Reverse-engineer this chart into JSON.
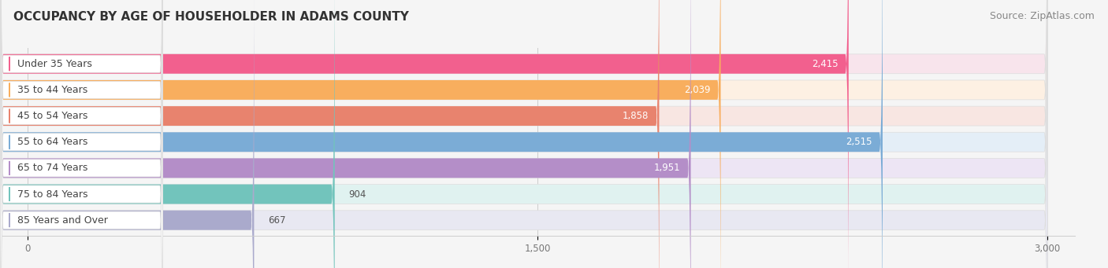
{
  "title": "OCCUPANCY BY AGE OF HOUSEHOLDER IN ADAMS COUNTY",
  "source": "Source: ZipAtlas.com",
  "categories": [
    "Under 35 Years",
    "35 to 44 Years",
    "45 to 54 Years",
    "55 to 64 Years",
    "65 to 74 Years",
    "75 to 84 Years",
    "85 Years and Over"
  ],
  "values": [
    2415,
    2039,
    1858,
    2515,
    1951,
    904,
    667
  ],
  "bar_colors": [
    "#F2608E",
    "#F8AE5E",
    "#E8836E",
    "#7BACD6",
    "#B48EC8",
    "#72C4BC",
    "#AAAACC"
  ],
  "bar_bg_colors": [
    "#F8E4EC",
    "#FDF0E3",
    "#F8E6E2",
    "#E4EEF7",
    "#EDE5F4",
    "#E0F2F0",
    "#E8E8F2"
  ],
  "label_bg": "#FFFFFF",
  "xlim": [
    0,
    3000
  ],
  "xticks": [
    0,
    1500,
    3000
  ],
  "title_fontsize": 11,
  "source_fontsize": 9,
  "label_fontsize": 9,
  "value_fontsize": 8.5,
  "background_color": "#F5F5F5"
}
